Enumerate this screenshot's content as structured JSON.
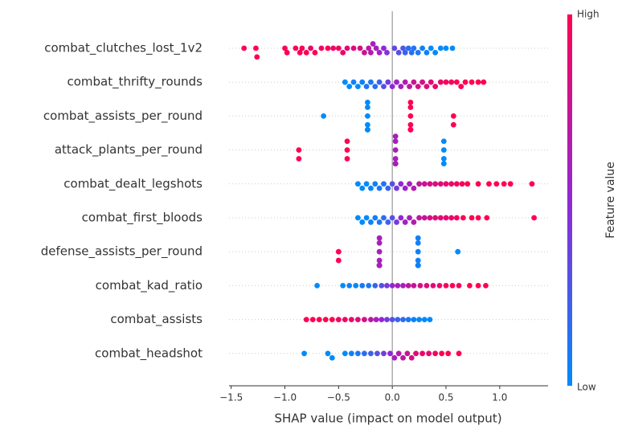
{
  "chart_data": {
    "type": "beeswarm",
    "xlabel": "SHAP value (impact on model output)",
    "xlim": [
      -1.52,
      1.45
    ],
    "xticks": [
      {
        "value": -1.5,
        "label": "−1.5"
      },
      {
        "value": -1.0,
        "label": "−1.0"
      },
      {
        "value": -0.5,
        "label": "−0.5"
      },
      {
        "value": 0.0,
        "label": "0.0"
      },
      {
        "value": 0.5,
        "label": "0.5"
      },
      {
        "value": 1.0,
        "label": "1.0"
      }
    ],
    "colorbar": {
      "label": "Feature value",
      "high": "High",
      "low": "Low",
      "clim": [
        0,
        1
      ],
      "colors": [
        "#008bfb",
        "#9128d4",
        "#ff0052"
      ]
    },
    "series": [
      {
        "name": "combat_clutches_lost_1v2",
        "values": [
          -1.38,
          -1.27,
          -1.26,
          -1.0,
          -0.98,
          -0.9,
          -0.86,
          -0.84,
          -0.8,
          -0.76,
          -0.72,
          -0.66,
          -0.6,
          -0.55,
          -0.5,
          -0.46,
          -0.42,
          -0.36,
          -0.3,
          -0.26,
          -0.22,
          -0.2,
          -0.18,
          -0.15,
          -0.12,
          -0.08,
          -0.05,
          0.02,
          0.06,
          0.1,
          0.12,
          0.15,
          0.18,
          0.2,
          0.24,
          0.28,
          0.32,
          0.36,
          0.4,
          0.45,
          0.5,
          0.56
        ],
        "feature_values": [
          1,
          1,
          1,
          1,
          1,
          1,
          1,
          0.95,
          1,
          0.9,
          1,
          0.95,
          1,
          0.9,
          0.95,
          0.9,
          0.85,
          0.85,
          0.8,
          0.75,
          0.7,
          0.65,
          0.6,
          0.6,
          0.55,
          0.5,
          0.45,
          0.35,
          0.3,
          0.25,
          0.2,
          0.15,
          0.15,
          0.1,
          0.1,
          0.05,
          0.05,
          0,
          0,
          0,
          0,
          0
        ]
      },
      {
        "name": "combat_thrifty_rounds",
        "values": [
          -0.44,
          -0.4,
          -0.36,
          -0.32,
          -0.28,
          -0.24,
          -0.2,
          -0.16,
          -0.12,
          -0.08,
          -0.04,
          0.0,
          0.04,
          0.08,
          0.12,
          0.16,
          0.2,
          0.24,
          0.28,
          0.32,
          0.36,
          0.4,
          0.45,
          0.5,
          0.55,
          0.6,
          0.64,
          0.68,
          0.74,
          0.8,
          0.85
        ],
        "feature_values": [
          0,
          0,
          0.05,
          0,
          0.05,
          0.1,
          0.1,
          0.15,
          0.2,
          0.3,
          0.4,
          0.5,
          0.55,
          0.6,
          0.65,
          0.7,
          0.75,
          0.8,
          0.8,
          0.85,
          0.85,
          0.9,
          0.9,
          0.95,
          0.95,
          1,
          1,
          1,
          1,
          1,
          1
        ]
      },
      {
        "name": "combat_assists_per_round",
        "values": [
          -0.64,
          -0.23,
          -0.23,
          -0.23,
          -0.23,
          -0.23,
          -0.23,
          -0.23,
          0.17,
          0.17,
          0.17,
          0.17,
          0.17,
          0.17,
          0.17,
          0.57,
          0.57
        ],
        "feature_values": [
          0,
          0,
          0,
          0,
          0,
          0,
          0,
          0,
          1,
          1,
          1,
          1,
          1,
          1,
          1,
          1,
          1
        ]
      },
      {
        "name": "attack_plants_per_round",
        "values": [
          -0.87,
          -0.87,
          -0.42,
          -0.42,
          -0.42,
          0.03,
          0.03,
          0.03,
          0.03,
          0.03,
          0.03,
          0.03,
          0.03,
          0.48,
          0.48,
          0.48,
          0.48
        ],
        "feature_values": [
          1,
          1,
          1,
          1,
          1,
          0.6,
          0.6,
          0.6,
          0.6,
          0.6,
          0.6,
          0.6,
          0.6,
          0,
          0,
          0,
          0
        ]
      },
      {
        "name": "combat_dealt_legshots",
        "values": [
          -0.32,
          -0.28,
          -0.24,
          -0.2,
          -0.16,
          -0.12,
          -0.08,
          -0.04,
          0.0,
          0.04,
          0.08,
          0.12,
          0.16,
          0.2,
          0.25,
          0.3,
          0.35,
          0.4,
          0.45,
          0.5,
          0.55,
          0.6,
          0.65,
          0.7,
          0.8,
          0.9,
          0.97,
          1.04,
          1.1,
          1.3
        ],
        "feature_values": [
          0,
          0,
          0,
          0.05,
          0.05,
          0.1,
          0.1,
          0.2,
          0.3,
          0.4,
          0.5,
          0.55,
          0.6,
          0.65,
          0.7,
          0.75,
          0.8,
          0.8,
          0.85,
          0.9,
          0.9,
          0.95,
          0.95,
          1,
          1,
          1,
          1,
          1,
          1,
          1
        ]
      },
      {
        "name": "combat_first_bloods",
        "values": [
          -0.32,
          -0.28,
          -0.24,
          -0.2,
          -0.16,
          -0.12,
          -0.08,
          -0.04,
          0.0,
          0.04,
          0.08,
          0.12,
          0.16,
          0.2,
          0.25,
          0.3,
          0.35,
          0.4,
          0.45,
          0.5,
          0.55,
          0.6,
          0.66,
          0.74,
          0.8,
          0.88,
          1.32
        ],
        "feature_values": [
          0,
          0,
          0,
          0.05,
          0.05,
          0.1,
          0.15,
          0.2,
          0.3,
          0.4,
          0.5,
          0.55,
          0.6,
          0.65,
          0.7,
          0.75,
          0.8,
          0.85,
          0.85,
          0.9,
          0.9,
          0.95,
          1,
          1,
          1,
          1,
          1
        ]
      },
      {
        "name": "defense_assists_per_round",
        "values": [
          -0.5,
          -0.5,
          -0.12,
          -0.12,
          -0.12,
          -0.12,
          -0.12,
          -0.12,
          -0.12,
          -0.12,
          0.24,
          0.24,
          0.24,
          0.24,
          0.24,
          0.24,
          0.24,
          0.24,
          0.61
        ],
        "feature_values": [
          1,
          1,
          0.6,
          0.6,
          0.6,
          0.6,
          0.6,
          0.6,
          0.6,
          0.6,
          0.05,
          0.05,
          0.05,
          0.05,
          0.05,
          0.05,
          0.05,
          0.05,
          0
        ]
      },
      {
        "name": "combat_kad_ratio",
        "values": [
          -0.7,
          -0.46,
          -0.4,
          -0.34,
          -0.28,
          -0.22,
          -0.16,
          -0.1,
          -0.05,
          0.0,
          0.05,
          0.1,
          0.15,
          0.2,
          0.26,
          0.32,
          0.38,
          0.44,
          0.5,
          0.56,
          0.62,
          0.72,
          0.8,
          0.87
        ],
        "feature_values": [
          0,
          0,
          0.05,
          0,
          0.1,
          0.1,
          0.2,
          0.3,
          0.4,
          0.5,
          0.6,
          0.6,
          0.7,
          0.75,
          0.8,
          0.85,
          0.85,
          0.9,
          0.95,
          1,
          0.95,
          1,
          1,
          1
        ]
      },
      {
        "name": "combat_assists",
        "values": [
          -0.8,
          -0.74,
          -0.68,
          -0.62,
          -0.56,
          -0.5,
          -0.44,
          -0.38,
          -0.32,
          -0.26,
          -0.2,
          -0.15,
          -0.1,
          -0.05,
          0.0,
          0.05,
          0.1,
          0.15,
          0.2,
          0.25,
          0.3,
          0.35
        ],
        "feature_values": [
          1,
          1,
          1,
          1,
          1,
          0.95,
          0.95,
          0.9,
          0.85,
          0.8,
          0.7,
          0.6,
          0.5,
          0.4,
          0.3,
          0.2,
          0.15,
          0.1,
          0.05,
          0,
          0,
          0
        ]
      },
      {
        "name": "combat_headshot",
        "values": [
          -0.82,
          -0.6,
          -0.56,
          -0.44,
          -0.38,
          -0.32,
          -0.26,
          -0.2,
          -0.14,
          -0.08,
          -0.02,
          0.02,
          0.06,
          0.1,
          0.14,
          0.18,
          0.22,
          0.28,
          0.34,
          0.4,
          0.46,
          0.52,
          0.62
        ],
        "feature_values": [
          0,
          0,
          0,
          0,
          0.05,
          0.1,
          0.15,
          0.2,
          0.3,
          0.4,
          0.5,
          0.6,
          0.65,
          0.7,
          0.75,
          0.8,
          0.85,
          0.9,
          0.9,
          0.95,
          1,
          1,
          1
        ]
      }
    ]
  }
}
